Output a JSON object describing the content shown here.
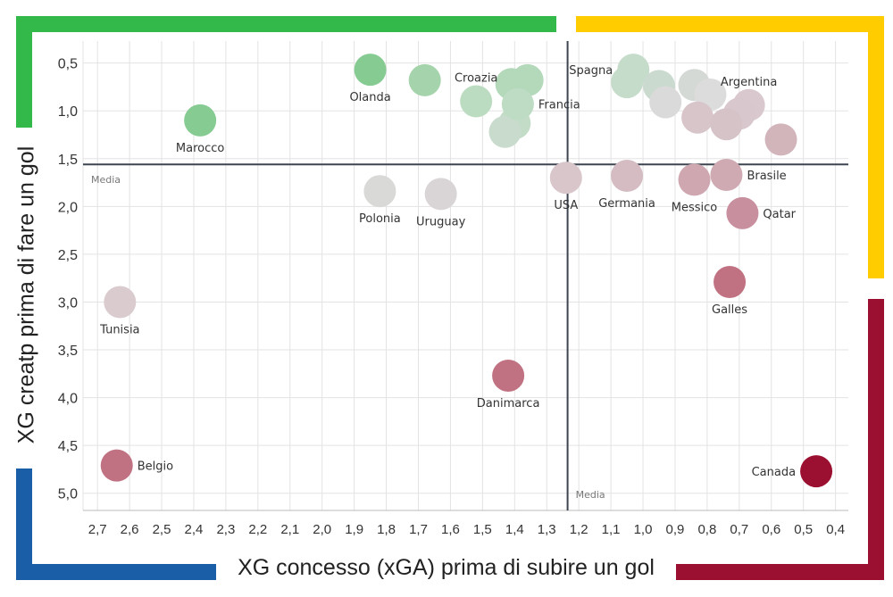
{
  "chart_data": {
    "type": "scatter",
    "xlabel": "XG concesso (xGA) prima di subire un gol",
    "ylabel": "XG creatp prima di fare un gol",
    "xlim": [
      2.745,
      0.36
    ],
    "ylim": [
      0.27,
      5.18
    ],
    "x_reversed": true,
    "y_reversed": true,
    "grid": true,
    "x_ticks": [
      "2,7",
      "2,6",
      "2,5",
      "2,4",
      "2,3",
      "2,2",
      "2,1",
      "2,0",
      "1,9",
      "1,8",
      "1,7",
      "1,6",
      "1,5",
      "1,4",
      "1,3",
      "1,2",
      "1,1",
      "1,0",
      "0,9",
      "0,8",
      "0,7",
      "0,6",
      "0,5",
      "0,4"
    ],
    "x_tick_values": [
      2.7,
      2.6,
      2.5,
      2.4,
      2.3,
      2.2,
      2.1,
      2.0,
      1.9,
      1.8,
      1.7,
      1.6,
      1.5,
      1.4,
      1.3,
      1.2,
      1.1,
      1.0,
      0.9,
      0.8,
      0.7,
      0.6,
      0.5,
      0.4
    ],
    "y_ticks": [
      "0,5",
      "1,0",
      "1,5",
      "2,0",
      "2,5",
      "3,0",
      "3,5",
      "4,0",
      "4,5",
      "5,0"
    ],
    "y_tick_values": [
      0.5,
      1.0,
      1.5,
      2.0,
      2.5,
      3.0,
      3.5,
      4.0,
      4.5,
      5.0
    ],
    "mean_lines": {
      "x": 1.235,
      "y": 1.56,
      "label_x": "Media",
      "label_y": "Media"
    },
    "quadrant_colors": {
      "top_left": "#33b94a",
      "top_right": "#ffcc00",
      "bottom_left": "#1a5ea8",
      "bottom_right": "#9b1030"
    },
    "points": [
      {
        "label": "Olanda",
        "x": 1.85,
        "y": 0.57,
        "color": "#86cb91",
        "label_pos": "below"
      },
      {
        "label": "",
        "x": 1.68,
        "y": 0.68,
        "color": "#a5d4ac"
      },
      {
        "label": "Marocco",
        "x": 2.38,
        "y": 1.1,
        "color": "#86cb91",
        "label_pos": "below"
      },
      {
        "label": "Croazia",
        "x": 1.52,
        "y": 0.9,
        "color": "#bcdcc2",
        "label_pos": "above"
      },
      {
        "label": "",
        "x": 1.41,
        "y": 0.72,
        "color": "#b3d8ba"
      },
      {
        "label": "",
        "x": 1.36,
        "y": 0.68,
        "color": "#b3d8ba"
      },
      {
        "label": "",
        "x": 1.4,
        "y": 1.13,
        "color": "#c3dcc8"
      },
      {
        "label": "",
        "x": 1.43,
        "y": 1.22,
        "color": "#c9dbcd"
      },
      {
        "label": "Francia",
        "x": 1.39,
        "y": 0.93,
        "color": "#bedcc4",
        "label_pos": "right"
      },
      {
        "label": "Spagna",
        "x": 1.03,
        "y": 0.57,
        "color": "#c6dccb",
        "label_pos": "left"
      },
      {
        "label": "",
        "x": 1.05,
        "y": 0.7,
        "color": "#c6dccb"
      },
      {
        "label": "",
        "x": 0.95,
        "y": 0.74,
        "color": "#cadacf"
      },
      {
        "label": "",
        "x": 0.93,
        "y": 0.91,
        "color": "#dadada"
      },
      {
        "label": "",
        "x": 0.84,
        "y": 0.73,
        "color": "#d5d9d6"
      },
      {
        "label": "",
        "x": 0.79,
        "y": 0.83,
        "color": "#dcdcdc"
      },
      {
        "label": "",
        "x": 0.83,
        "y": 1.07,
        "color": "#d7c5ca"
      },
      {
        "label": "Argentina",
        "x": 0.67,
        "y": 0.94,
        "color": "#d9c8cd",
        "label_pos": "above"
      },
      {
        "label": "",
        "x": 0.7,
        "y": 1.03,
        "color": "#d8c7cc"
      },
      {
        "label": "",
        "x": 0.74,
        "y": 1.14,
        "color": "#d6c3c8"
      },
      {
        "label": "",
        "x": 0.57,
        "y": 1.3,
        "color": "#d2b4bb"
      },
      {
        "label": "USA",
        "x": 1.24,
        "y": 1.7,
        "color": "#d8c6cb",
        "label_pos": "below"
      },
      {
        "label": "Germania",
        "x": 1.05,
        "y": 1.68,
        "color": "#d4bcc2",
        "label_pos": "below"
      },
      {
        "label": "Messico",
        "x": 0.84,
        "y": 1.72,
        "color": "#cfa7b1",
        "label_pos": "below"
      },
      {
        "label": "Brasile",
        "x": 0.74,
        "y": 1.67,
        "color": "#cfaab3",
        "label_pos": "right"
      },
      {
        "label": "Qatar",
        "x": 0.69,
        "y": 2.07,
        "color": "#c8909f",
        "label_pos": "right"
      },
      {
        "label": "Polonia",
        "x": 1.82,
        "y": 1.84,
        "color": "#d9d9d7",
        "label_pos": "below"
      },
      {
        "label": "Uruguay",
        "x": 1.63,
        "y": 1.87,
        "color": "#d9d5d6",
        "label_pos": "below"
      },
      {
        "label": "Galles",
        "x": 0.73,
        "y": 2.79,
        "color": "#c07282",
        "label_pos": "below"
      },
      {
        "label": "Tunisia",
        "x": 2.63,
        "y": 3.0,
        "color": "#dacbcf",
        "label_pos": "below"
      },
      {
        "label": "Danimarca",
        "x": 1.42,
        "y": 3.77,
        "color": "#c07282",
        "label_pos": "below"
      },
      {
        "label": "Belgio",
        "x": 2.64,
        "y": 4.71,
        "color": "#c07282",
        "label_pos": "right"
      },
      {
        "label": "Canada",
        "x": 0.46,
        "y": 4.77,
        "color": "#9b1030",
        "label_pos": "left"
      }
    ]
  }
}
